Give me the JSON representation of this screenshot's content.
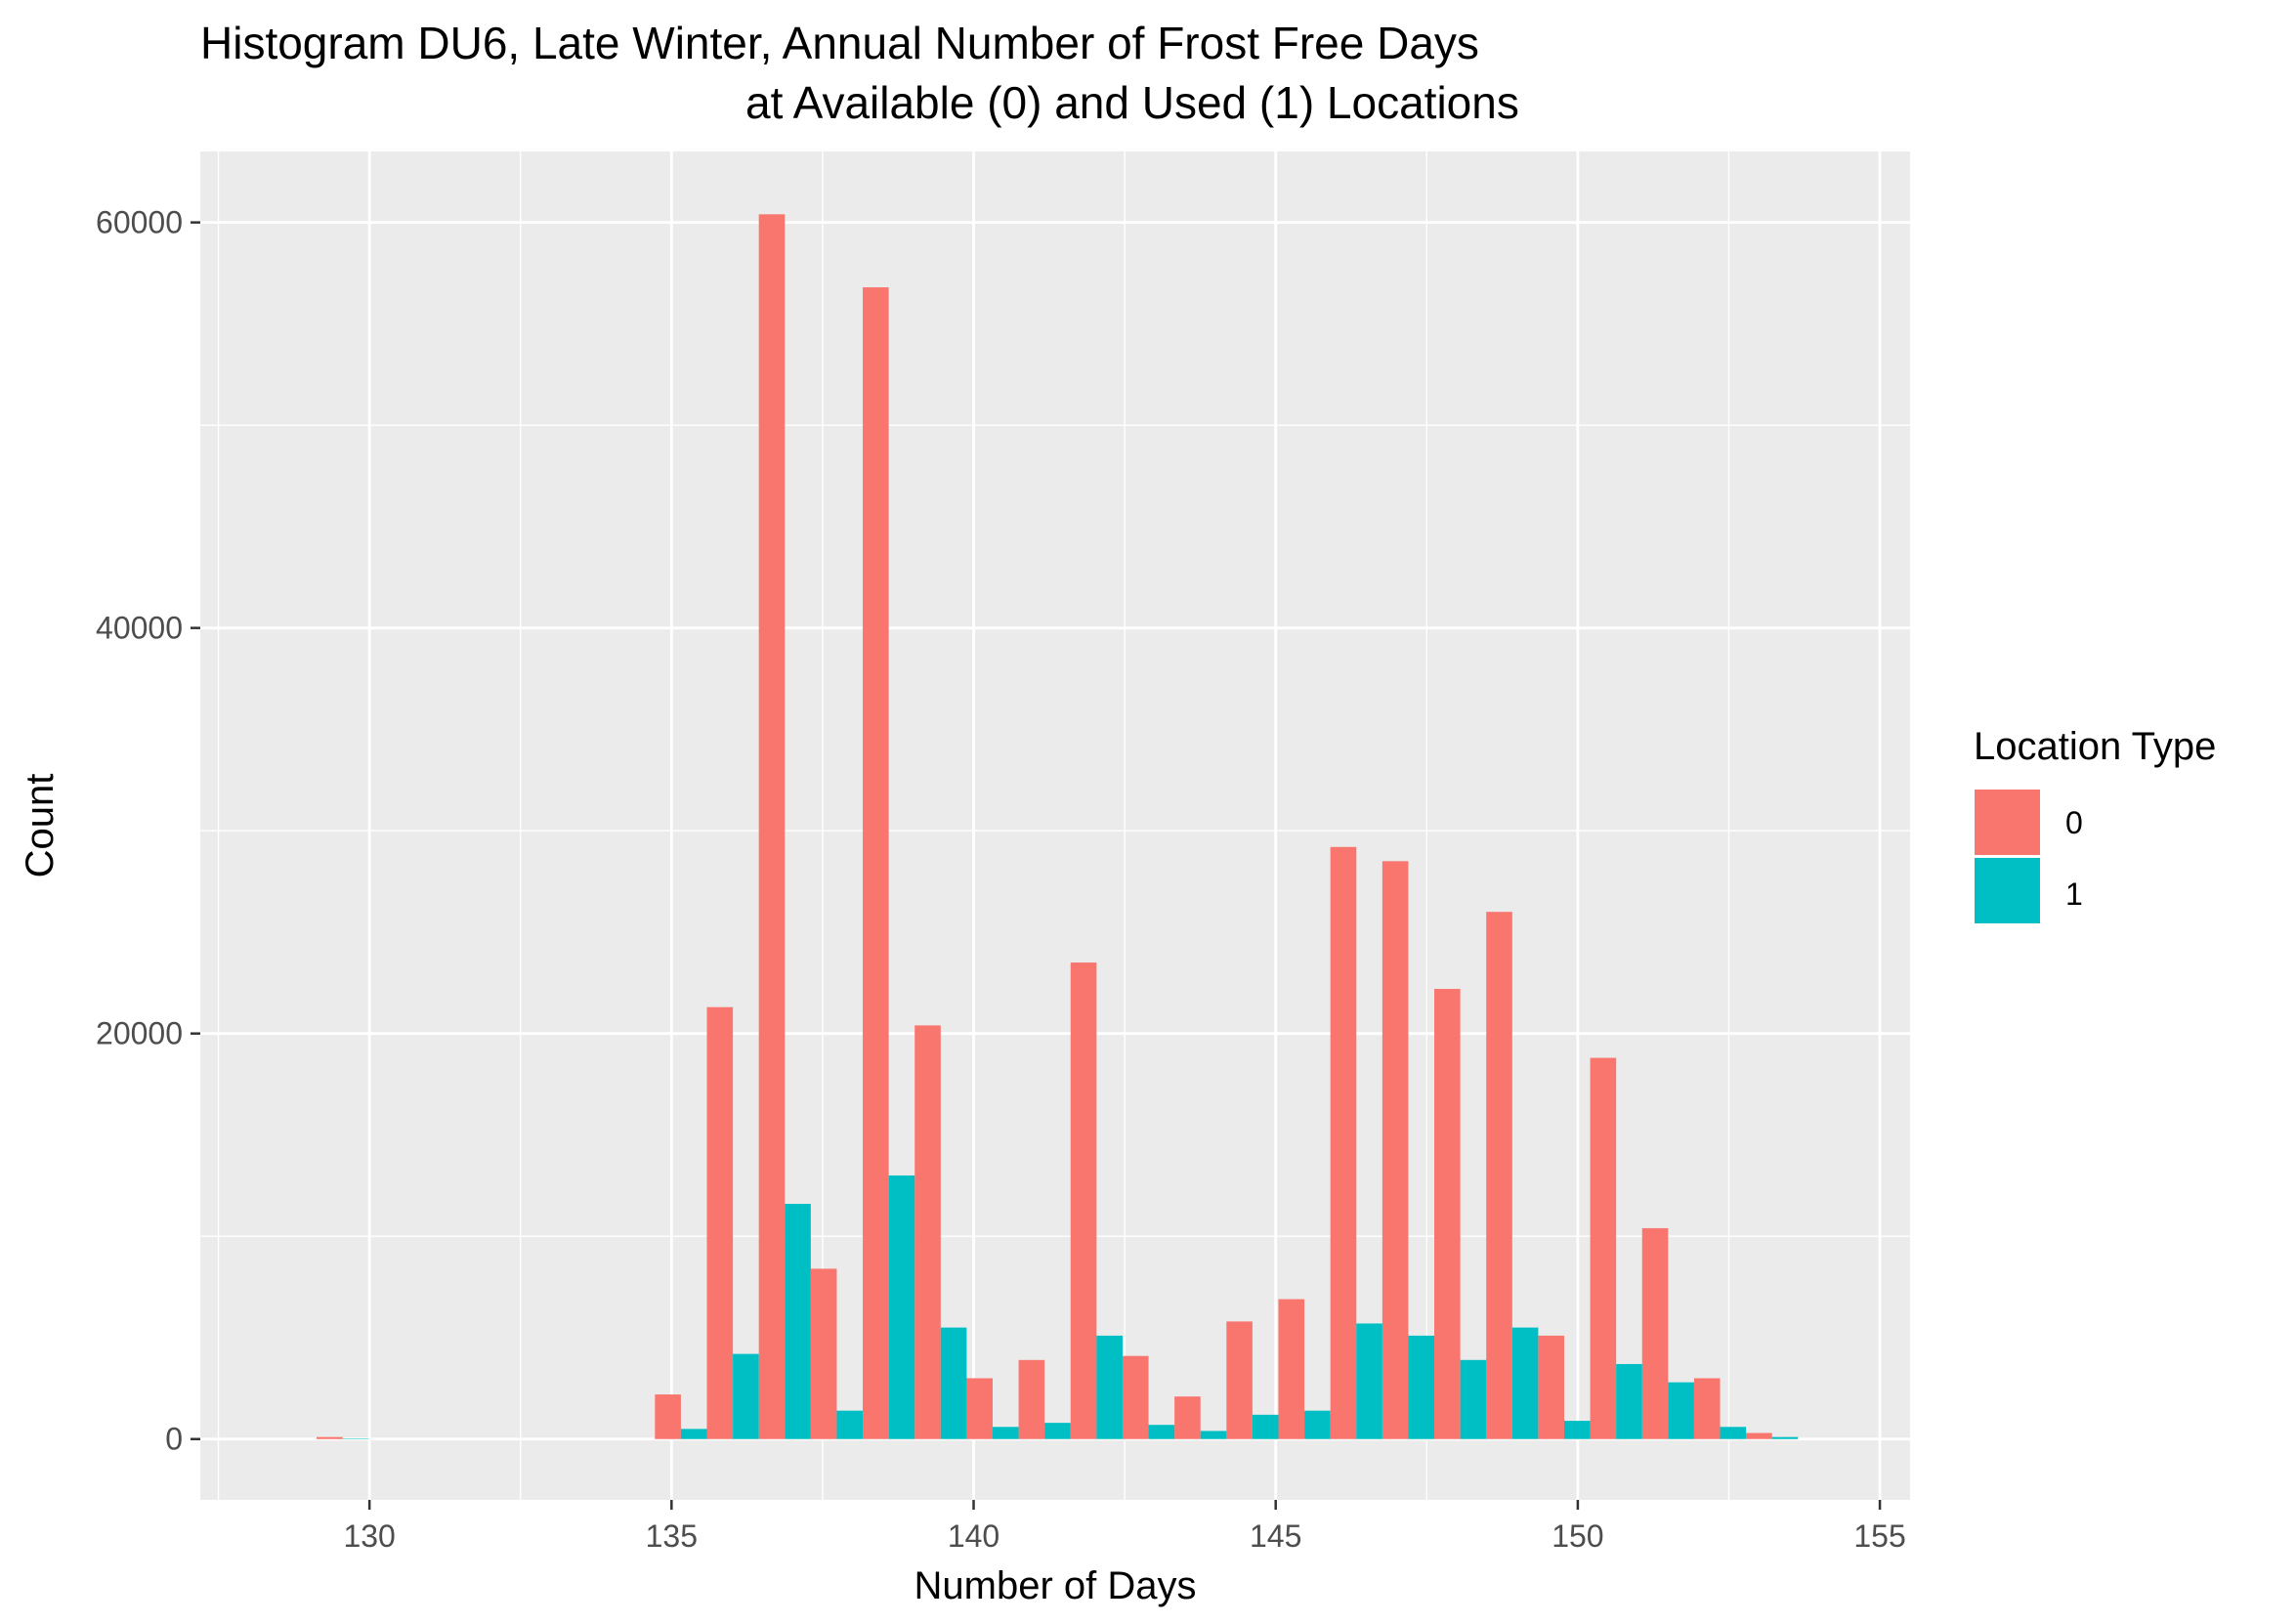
{
  "chart_data": {
    "type": "bar",
    "title": "Histogram DU6, Late Winter, Annual Number of Frost Free Days",
    "subtitle": "at Available (0) and Used (1) Locations",
    "xlabel": "Number of Days",
    "ylabel": "Count",
    "xlim": [
      127.2,
      155.5
    ],
    "ylim": [
      -3000,
      63500
    ],
    "x_ticks": [
      130,
      135,
      140,
      145,
      150,
      155
    ],
    "x_tick_labels": [
      "130",
      "135",
      "140",
      "145",
      "150",
      "155"
    ],
    "y_ticks": [
      0,
      20000,
      40000,
      60000
    ],
    "y_tick_labels": [
      "0",
      "20000",
      "40000",
      "60000"
    ],
    "bin_width": 0.86,
    "legend": {
      "title": "Location Type",
      "position": "right"
    },
    "grid": true,
    "series": [
      {
        "name": "0",
        "color": "#F8766D",
        "x": [
          129.34,
          134.94,
          135.8,
          136.66,
          137.52,
          138.38,
          139.24,
          140.1,
          140.96,
          141.82,
          142.68,
          143.54,
          144.4,
          145.26,
          146.12,
          146.98,
          147.84,
          148.7,
          149.56,
          150.42,
          151.28,
          152.14,
          153.0
        ],
        "values": [
          100,
          2200,
          21300,
          60400,
          8400,
          56800,
          20400,
          3000,
          3900,
          23500,
          4100,
          2100,
          5800,
          6900,
          29200,
          28500,
          22200,
          26000,
          5100,
          18800,
          10400,
          3000,
          300
        ]
      },
      {
        "name": "1",
        "color": "#00BFC4",
        "x": [
          129.77,
          135.37,
          136.23,
          137.09,
          137.95,
          138.81,
          139.67,
          140.53,
          141.39,
          142.25,
          143.11,
          143.97,
          144.83,
          145.69,
          146.55,
          147.41,
          148.27,
          149.13,
          149.99,
          150.85,
          151.71,
          152.57,
          153.43
        ],
        "values": [
          0,
          500,
          4200,
          11600,
          1400,
          13000,
          5500,
          600,
          800,
          5100,
          700,
          400,
          1200,
          1400,
          5700,
          5100,
          3900,
          5500,
          900,
          3700,
          2800,
          600,
          100
        ]
      }
    ]
  }
}
